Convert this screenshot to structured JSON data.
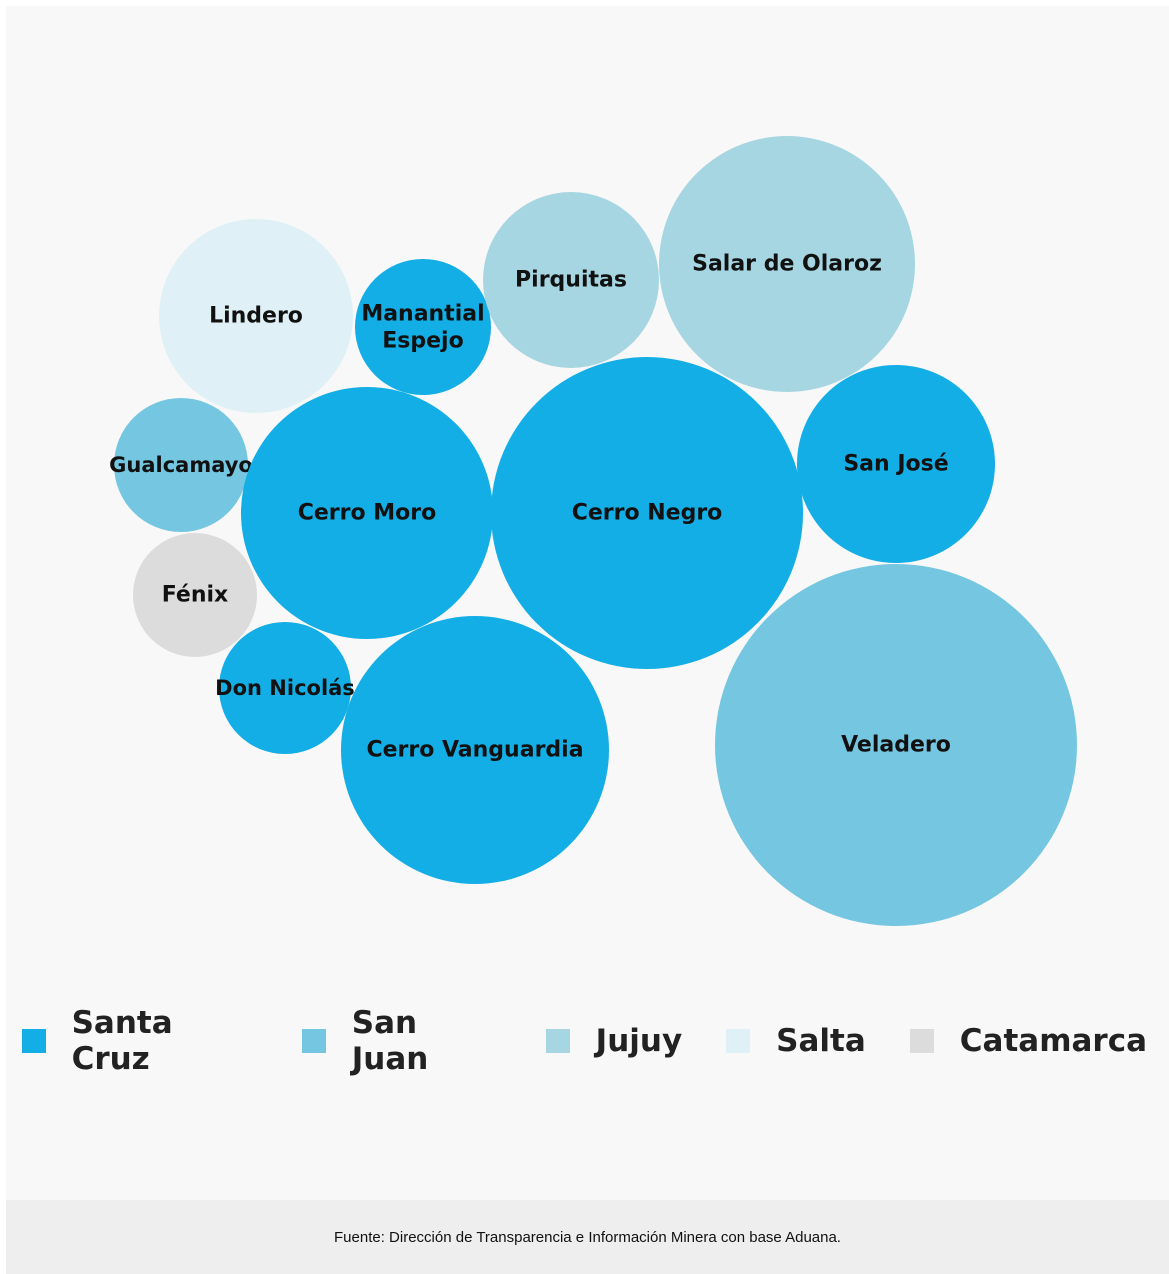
{
  "chart_data": {
    "type": "bubble",
    "title": "",
    "colors": {
      "Santa Cruz": "#12aee5",
      "San Juan": "#75c6e0",
      "Jujuy": "#a6d6e2",
      "Salta": "#dff1f6",
      "Catamarca": "#dcdcdc"
    },
    "bubbles": [
      {
        "label": "Lindero",
        "province": "Salta"
      },
      {
        "label": "Manantial Espejo",
        "province": "Santa Cruz"
      },
      {
        "label": "Pirquitas",
        "province": "Jujuy"
      },
      {
        "label": "Salar de Olaroz",
        "province": "Jujuy"
      },
      {
        "label": "Gualcamayo",
        "province": "San Juan"
      },
      {
        "label": "Cerro Moro",
        "province": "Santa Cruz"
      },
      {
        "label": "Cerro Negro",
        "province": "Santa Cruz"
      },
      {
        "label": "San José",
        "province": "Santa Cruz"
      },
      {
        "label": "Fénix",
        "province": "Catamarca"
      },
      {
        "label": "Don Nicolás",
        "province": "Santa Cruz"
      },
      {
        "label": "Cerro Vanguardia",
        "province": "Santa Cruz"
      },
      {
        "label": "Veladero",
        "province": "San Juan"
      }
    ],
    "legend": {
      "position": "bottom",
      "items": [
        {
          "label": "Santa Cruz",
          "color": "#12aee5"
        },
        {
          "label": "San Juan",
          "color": "#75c6e0"
        },
        {
          "label": "Jujuy",
          "color": "#a6d6e2"
        },
        {
          "label": "Salta",
          "color": "#dff1f6"
        },
        {
          "label": "Catamarca",
          "color": "#dcdcdc"
        }
      ]
    }
  },
  "footer": {
    "source": "Fuente: Dirección de Transparencia e Información Minera con base Aduana."
  }
}
